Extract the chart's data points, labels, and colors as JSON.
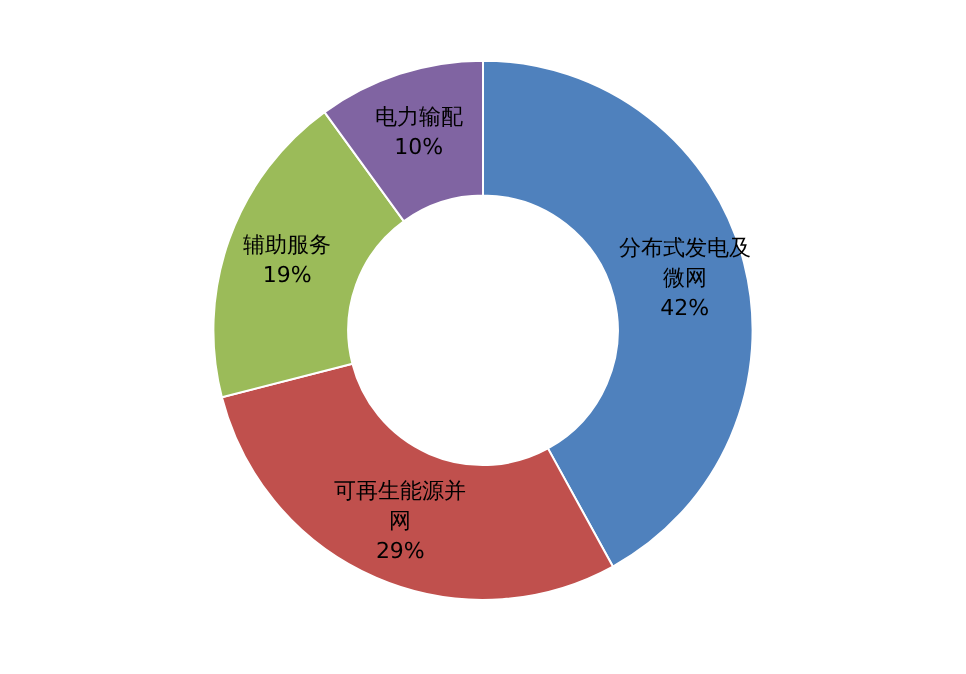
{
  "chart_data": {
    "type": "donut",
    "categories": [
      "分布式发电及微网",
      "可再生能源并网",
      "辅助服务",
      "电力输配"
    ],
    "values": [
      42,
      29,
      19,
      10
    ],
    "colors": [
      "#4f81bd",
      "#c0504d",
      "#9bbb59",
      "#8064a2"
    ],
    "value_labels": [
      "42%",
      "29%",
      "19%",
      "10%"
    ],
    "legend": false
  }
}
